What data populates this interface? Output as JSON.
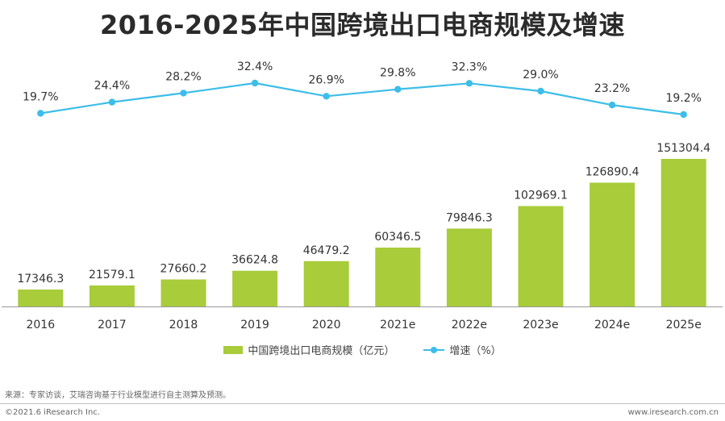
{
  "chart_data": {
    "type": "bar",
    "title": "2016-2025年中国跨境出口电商规模及增速",
    "categories": [
      "2016",
      "2017",
      "2018",
      "2019",
      "2020",
      "2021e",
      "2022e",
      "2023e",
      "2024e",
      "2025e"
    ],
    "series": [
      {
        "name": "中国跨境出口电商规模（亿元）",
        "type": "bar",
        "color": "#a8cc3a",
        "values": [
          17346.3,
          21579.1,
          27660.2,
          36624.8,
          46479.2,
          60346.5,
          79846.3,
          102969.1,
          126890.4,
          151304.4
        ],
        "labels": [
          "17346.3",
          "21579.1",
          "27660.2",
          "36624.8",
          "46479.2",
          "60346.5",
          "79846.3",
          "102969.1",
          "126890.4",
          "151304.4"
        ]
      },
      {
        "name": "增速（%）",
        "type": "line",
        "color": "#3dbde9",
        "values": [
          19.7,
          24.4,
          28.2,
          32.4,
          26.9,
          29.8,
          32.3,
          29.0,
          23.2,
          19.2
        ],
        "labels": [
          "19.7%",
          "24.4%",
          "28.2%",
          "32.4%",
          "26.9%",
          "29.8%",
          "32.3%",
          "29.0%",
          "23.2%",
          "19.2%"
        ]
      }
    ],
    "xlabel": "",
    "ylabel": "",
    "grid": false,
    "legend": "bottom-center"
  },
  "footer": {
    "source": "来源：专家访谈，艾瑞咨询基于行业模型进行自主测算及预测。",
    "copyright": "©2021.6 iResearch Inc.",
    "website": "www.iresearch.com.cn"
  }
}
